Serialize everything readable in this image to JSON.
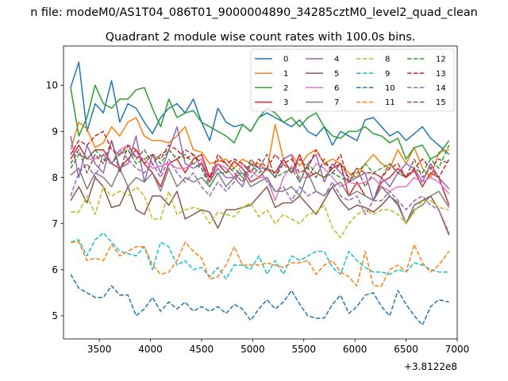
{
  "chart_data": {
    "type": "line",
    "suptitle": "n file: modeM0/AS1T04_086T01_9000004890_34285cztM0_level2_quad_clean",
    "title": "Quadrant 2 module wise count rates with 100.0s bins.",
    "xlabel": "",
    "ylabel": "",
    "x_offset_label": "+3.8122e8",
    "xlim": [
      3150,
      7000
    ],
    "ylim": [
      4.5,
      10.85
    ],
    "xticks": [
      "3500",
      "4000",
      "4500",
      "5000",
      "5500",
      "6000",
      "6500",
      "7000"
    ],
    "xtick_values": [
      3500,
      4000,
      4500,
      5000,
      5500,
      6000,
      6500,
      7000
    ],
    "yticks": [
      "5",
      "6",
      "7",
      "8",
      "9",
      "10"
    ],
    "ytick_values": [
      5,
      6,
      7,
      8,
      9,
      10
    ],
    "x": [
      3220,
      3300,
      3380,
      3460,
      3540,
      3620,
      3700,
      3780,
      3860,
      3940,
      4020,
      4100,
      4180,
      4260,
      4340,
      4420,
      4500,
      4580,
      4660,
      4740,
      4820,
      4900,
      4980,
      5060,
      5140,
      5220,
      5300,
      5380,
      5460,
      5540,
      5620,
      5700,
      5780,
      5860,
      5940,
      6020,
      6100,
      6180,
      6260,
      6340,
      6420,
      6500,
      6580,
      6660,
      6740,
      6820,
      6920
    ],
    "legend_position": "upper right",
    "series": [
      {
        "name": "0",
        "color": "#1f77b4",
        "dash": "solid",
        "values": [
          9.95,
          10.5,
          9.0,
          9.6,
          9.4,
          10.1,
          9.2,
          9.6,
          9.5,
          9.2,
          8.95,
          9.3,
          9.5,
          9.6,
          9.4,
          9.7,
          9.2,
          8.8,
          9.5,
          9.2,
          9.1,
          9.15,
          9.0,
          9.3,
          9.4,
          9.3,
          9.2,
          9.1,
          9.25,
          9.0,
          8.9,
          9.1,
          8.7,
          9.0,
          8.9,
          8.8,
          9.25,
          9.3,
          9.1,
          8.9,
          9.0,
          8.8,
          8.95,
          9.1,
          8.85,
          8.7,
          8.5
        ]
      },
      {
        "name": "1",
        "color": "#ff7f0e",
        "dash": "solid",
        "values": [
          8.6,
          9.2,
          9.05,
          8.65,
          8.75,
          9.1,
          8.9,
          9.2,
          9.3,
          8.9,
          8.8,
          8.8,
          8.75,
          8.9,
          9.1,
          8.6,
          8.55,
          8.3,
          8.35,
          8.4,
          8.2,
          8.4,
          8.3,
          8.3,
          8.15,
          9.15,
          8.4,
          8.5,
          8.25,
          8.5,
          8.6,
          8.3,
          8.4,
          8.3,
          8.1,
          8.0,
          8.3,
          8.5,
          8.3,
          8.2,
          8.6,
          8.3,
          8.65,
          8.2,
          8.0,
          8.55,
          8.6
        ]
      },
      {
        "name": "2",
        "color": "#2ca02c",
        "dash": "solid",
        "values": [
          9.95,
          8.9,
          9.3,
          10.0,
          9.6,
          9.5,
          9.7,
          9.7,
          9.9,
          9.95,
          9.5,
          9.1,
          9.7,
          9.3,
          9.4,
          9.45,
          9.2,
          9.1,
          9.0,
          8.9,
          8.75,
          9.15,
          9.0,
          9.3,
          9.5,
          9.4,
          9.2,
          9.3,
          9.1,
          9.3,
          9.4,
          9.1,
          8.9,
          8.85,
          9.0,
          9.0,
          9.1,
          8.95,
          8.9,
          8.75,
          8.85,
          8.4,
          8.65,
          8.7,
          8.4,
          8.5,
          8.8
        ]
      },
      {
        "name": "3",
        "color": "#d62728",
        "dash": "solid",
        "values": [
          8.4,
          8.7,
          8.4,
          8.6,
          8.6,
          8.3,
          8.2,
          8.4,
          8.6,
          8.3,
          8.1,
          7.8,
          8.3,
          8.4,
          8.1,
          8.4,
          8.5,
          8.0,
          8.3,
          8.1,
          8.35,
          8.2,
          7.9,
          8.0,
          8.2,
          8.1,
          8.4,
          8.1,
          8.5,
          8.0,
          8.1,
          8.0,
          8.2,
          8.3,
          7.6,
          7.9,
          7.6,
          7.5,
          7.9,
          8.0,
          8.2,
          8.0,
          8.15,
          7.8,
          8.1,
          8.0,
          7.4
        ]
      },
      {
        "name": "4",
        "color": "#9467bd",
        "dash": "solid",
        "values": [
          8.9,
          8.0,
          8.7,
          8.3,
          8.1,
          8.8,
          8.2,
          8.3,
          8.9,
          7.9,
          8.5,
          8.1,
          8.6,
          9.1,
          8.3,
          8.2,
          8.3,
          7.9,
          8.2,
          8.0,
          8.0,
          7.8,
          8.3,
          8.2,
          8.2,
          8.0,
          8.4,
          8.5,
          7.9,
          8.3,
          8.5,
          7.9,
          8.3,
          8.1,
          7.9,
          8.0,
          8.1,
          7.5,
          8.0,
          7.8,
          8.1,
          8.3,
          8.2,
          7.9,
          8.3,
          8.0,
          7.75
        ]
      },
      {
        "name": "5",
        "color": "#8c564b",
        "dash": "solid",
        "values": [
          7.5,
          7.8,
          7.45,
          8.0,
          7.8,
          7.35,
          7.4,
          7.8,
          7.3,
          7.2,
          7.6,
          7.6,
          7.4,
          7.7,
          7.1,
          7.2,
          7.3,
          7.25,
          6.9,
          7.3,
          7.3,
          7.35,
          7.4,
          7.6,
          7.8,
          7.35,
          7.45,
          7.45,
          7.6,
          7.4,
          7.2,
          7.5,
          7.8,
          7.5,
          7.3,
          7.4,
          7.35,
          7.25,
          7.4,
          7.6,
          7.45,
          7.0,
          7.4,
          7.5,
          7.6,
          7.3,
          6.75
        ]
      },
      {
        "name": "6",
        "color": "#e377c2",
        "dash": "solid",
        "values": [
          8.7,
          8.5,
          8.4,
          8.4,
          8.5,
          8.3,
          8.6,
          8.7,
          8.45,
          8.4,
          8.2,
          8.25,
          8.3,
          8.2,
          8.2,
          8.3,
          8.4,
          7.9,
          8.3,
          8.2,
          8.0,
          8.3,
          8.15,
          8.0,
          8.0,
          7.5,
          8.0,
          8.25,
          8.0,
          8.0,
          8.3,
          8.2,
          8.0,
          7.8,
          7.9,
          7.85,
          7.9,
          8.0,
          7.8,
          7.7,
          7.8,
          7.8,
          8.0,
          7.9,
          8.0,
          7.9,
          7.65
        ]
      },
      {
        "name": "7",
        "color": "#7f7f7f",
        "dash": "solid",
        "values": [
          8.05,
          8.2,
          7.75,
          8.1,
          8.0,
          7.8,
          8.2,
          7.8,
          8.0,
          7.9,
          8.1,
          7.7,
          8.2,
          7.8,
          8.0,
          7.9,
          8.0,
          7.8,
          8.1,
          7.8,
          8.0,
          8.1,
          7.8,
          7.9,
          8.0,
          7.7,
          7.7,
          7.8,
          7.6,
          8.1,
          7.7,
          7.6,
          7.8,
          7.9,
          7.6,
          7.7,
          7.6,
          7.5,
          7.8,
          7.6,
          7.4,
          7.0,
          7.3,
          7.4,
          7.6,
          7.7,
          7.35
        ]
      },
      {
        "name": "8",
        "color": "#bcbd22",
        "dash": "dashed",
        "values": [
          7.25,
          7.25,
          7.6,
          7.2,
          7.8,
          7.6,
          7.7,
          7.6,
          7.8,
          7.6,
          7.1,
          7.1,
          7.7,
          7.2,
          7.3,
          7.35,
          7.3,
          7.0,
          7.25,
          7.2,
          7.15,
          7.35,
          7.45,
          7.15,
          7.3,
          7.0,
          7.2,
          7.1,
          7.0,
          7.2,
          7.25,
          7.4,
          6.9,
          6.7,
          7.0,
          7.2,
          7.3,
          7.2,
          7.3,
          7.3,
          7.2,
          7.0,
          7.25,
          7.5,
          7.5,
          7.35,
          7.3
        ]
      },
      {
        "name": "9",
        "color": "#17becf",
        "dash": "dashed",
        "values": [
          6.6,
          6.65,
          6.3,
          6.65,
          6.8,
          6.6,
          6.4,
          6.35,
          6.3,
          6.5,
          6.0,
          6.6,
          6.5,
          6.1,
          6.2,
          6.0,
          6.05,
          5.85,
          6.05,
          5.8,
          6.1,
          6.1,
          6.0,
          6.3,
          5.9,
          6.2,
          5.9,
          6.3,
          6.2,
          6.3,
          6.4,
          6.4,
          6.05,
          5.9,
          6.4,
          6.2,
          6.05,
          5.95,
          5.95,
          5.9,
          6.0,
          5.95,
          6.15,
          6.1,
          6.0,
          5.95,
          5.95
        ]
      },
      {
        "name": "10",
        "color": "#1f77b4",
        "dash": "dashed",
        "values": [
          5.9,
          5.6,
          5.5,
          5.4,
          5.4,
          5.65,
          5.45,
          5.45,
          5.0,
          5.15,
          5.4,
          5.1,
          5.3,
          5.15,
          5.3,
          5.1,
          5.2,
          5.1,
          5.2,
          5.05,
          5.25,
          5.15,
          4.9,
          5.15,
          5.35,
          5.15,
          5.3,
          5.55,
          5.25,
          5.0,
          4.95,
          4.95,
          5.25,
          5.45,
          5.05,
          5.2,
          5.45,
          5.5,
          5.2,
          5.0,
          5.55,
          5.25,
          5.0,
          4.8,
          5.2,
          5.35,
          5.3
        ]
      },
      {
        "name": "11",
        "color": "#ff7f0e",
        "dash": "dashed",
        "values": [
          6.6,
          6.6,
          6.2,
          6.25,
          6.2,
          6.55,
          6.3,
          6.4,
          6.5,
          6.5,
          6.1,
          5.9,
          5.95,
          6.2,
          6.6,
          6.4,
          6.25,
          5.8,
          5.85,
          6.1,
          6.5,
          6.1,
          6.1,
          6.1,
          6.15,
          6.1,
          6.05,
          6.15,
          6.15,
          6.2,
          5.9,
          6.1,
          6.2,
          5.95,
          5.85,
          5.65,
          6.4,
          5.65,
          5.65,
          6.0,
          6.1,
          5.95,
          6.55,
          6.15,
          5.95,
          6.1,
          6.4
        ]
      },
      {
        "name": "12",
        "color": "#2ca02c",
        "dash": "dashed",
        "values": [
          8.2,
          8.5,
          8.4,
          8.6,
          8.4,
          8.3,
          8.5,
          8.6,
          8.3,
          8.4,
          8.5,
          8.3,
          8.6,
          8.4,
          8.5,
          8.3,
          8.2,
          7.8,
          8.1,
          8.1,
          8.2,
          8.0,
          8.3,
          8.1,
          8.2,
          8.0,
          8.1,
          8.2,
          7.9,
          8.3,
          8.1,
          8.0,
          8.1,
          8.0,
          7.9,
          8.1,
          8.3,
          8.1,
          8.2,
          8.3,
          8.1,
          8.0,
          8.2,
          8.1,
          8.4,
          8.2,
          8.7
        ]
      },
      {
        "name": "13",
        "color": "#d62728",
        "dash": "dashed",
        "values": [
          8.5,
          8.8,
          8.7,
          8.9,
          9.0,
          8.6,
          8.5,
          8.7,
          8.6,
          8.3,
          8.5,
          8.4,
          8.7,
          8.6,
          8.4,
          8.5,
          8.3,
          8.0,
          8.5,
          8.3,
          8.4,
          8.3,
          8.1,
          8.4,
          8.2,
          8.5,
          8.3,
          8.4,
          8.1,
          8.2,
          8.6,
          8.3,
          8.2,
          8.5,
          7.9,
          8.2,
          8.1,
          8.1,
          8.0,
          8.2,
          8.3,
          8.0,
          8.2,
          8.4,
          8.2,
          8.0,
          8.4
        ]
      },
      {
        "name": "14",
        "color": "#9467bd",
        "dash": "dashed",
        "values": [
          7.6,
          8.1,
          8.3,
          8.0,
          8.5,
          8.3,
          8.6,
          8.4,
          8.2,
          8.1,
          8.3,
          8.0,
          8.4,
          8.1,
          7.9,
          8.1,
          7.8,
          7.6,
          7.9,
          7.7,
          7.9,
          8.2,
          8.0,
          8.2,
          7.9,
          7.7,
          7.8,
          7.5,
          7.8,
          7.6,
          7.7,
          7.6,
          7.9,
          7.6,
          7.5,
          7.6,
          7.2,
          7.5,
          7.5,
          7.7,
          7.5,
          7.3,
          7.5,
          7.6,
          7.4,
          7.3,
          6.8
        ]
      },
      {
        "name": "15",
        "color": "#8c564b",
        "dash": "dashed",
        "values": [
          8.3,
          8.6,
          8.1,
          8.5,
          8.3,
          8.8,
          8.1,
          8.7,
          8.4,
          8.6,
          8.3,
          8.5,
          8.6,
          8.4,
          8.6,
          8.5,
          8.2,
          7.9,
          8.4,
          8.3,
          8.1,
          7.9,
          8.4,
          8.2,
          8.5,
          8.0,
          8.3,
          8.1,
          8.4,
          8.2,
          8.0,
          8.4,
          8.1,
          8.3,
          8.0,
          8.2,
          7.8,
          8.1,
          8.0,
          8.3,
          8.1,
          8.0,
          8.4,
          8.0,
          8.2,
          8.4,
          8.3
        ]
      }
    ]
  }
}
